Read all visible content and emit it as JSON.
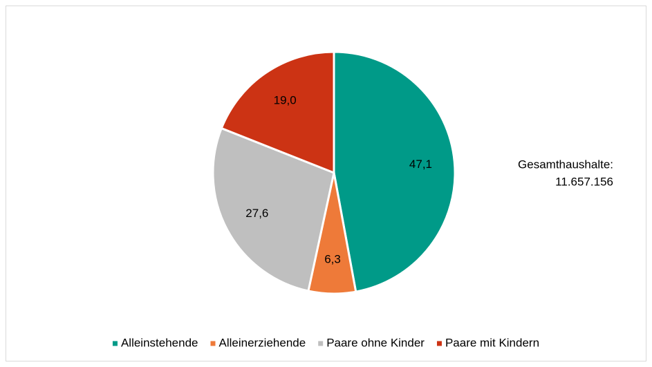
{
  "chart_data": {
    "type": "pie",
    "categories": [
      "Alleinstehende",
      "Alleinerziehende",
      "Paare ohne Kinder",
      "Paare mit Kindern"
    ],
    "values": [
      47.1,
      6.3,
      27.6,
      19.0
    ],
    "value_labels": [
      "47,1",
      "6,3",
      "27,6",
      "19,0"
    ],
    "colors": [
      "#009a88",
      "#ee7a39",
      "#bfbfbf",
      "#cc3314"
    ],
    "annotations": [
      "Gesamthaushalte:",
      "11.657.156"
    ],
    "legend": "bottom"
  }
}
